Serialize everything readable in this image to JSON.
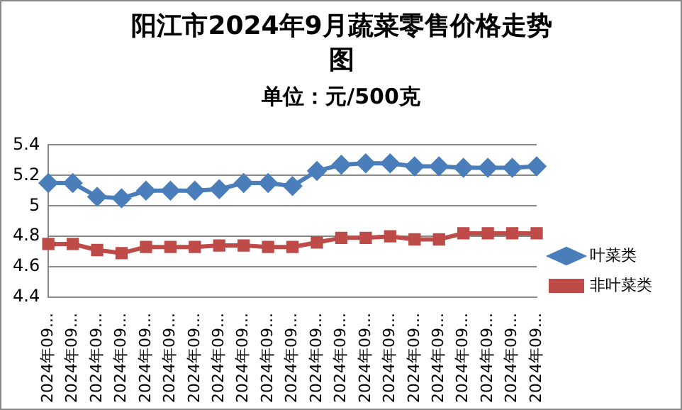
{
  "chart_data": {
    "type": "line",
    "title": "阳江市2024年9月蔬菜零售价格走势图",
    "subtitle": "单位：元/500克",
    "categories": [
      "2024年09...",
      "2024年09...",
      "2024年09...",
      "2024年09...",
      "2024年09...",
      "2024年09...",
      "2024年09...",
      "2024年09...",
      "2024年09...",
      "2024年09...",
      "2024年09...",
      "2024年09...",
      "2024年09...",
      "2024年09...",
      "2024年09...",
      "2024年09...",
      "2024年09...",
      "2024年09...",
      "2024年09...",
      "2024年09...",
      "2024年09..."
    ],
    "series": [
      {
        "name": "叶菜类",
        "color": "#4a7ebb",
        "marker": "diamond",
        "values": [
          5.15,
          5.15,
          5.06,
          5.05,
          5.1,
          5.1,
          5.1,
          5.11,
          5.15,
          5.15,
          5.13,
          5.23,
          5.27,
          5.28,
          5.28,
          5.26,
          5.26,
          5.25,
          5.25,
          5.25,
          5.26
        ]
      },
      {
        "name": "非叶菜类",
        "color": "#be4b48",
        "marker": "square",
        "values": [
          4.75,
          4.75,
          4.71,
          4.69,
          4.73,
          4.73,
          4.73,
          4.74,
          4.74,
          4.73,
          4.73,
          4.76,
          4.79,
          4.79,
          4.8,
          4.78,
          4.78,
          4.82,
          4.82,
          4.82,
          4.82
        ]
      }
    ],
    "ylim": [
      4.4,
      5.4
    ],
    "yticks": [
      4.4,
      4.6,
      4.8,
      5,
      5.2,
      5.4
    ],
    "grid": "y",
    "legend": "right"
  }
}
